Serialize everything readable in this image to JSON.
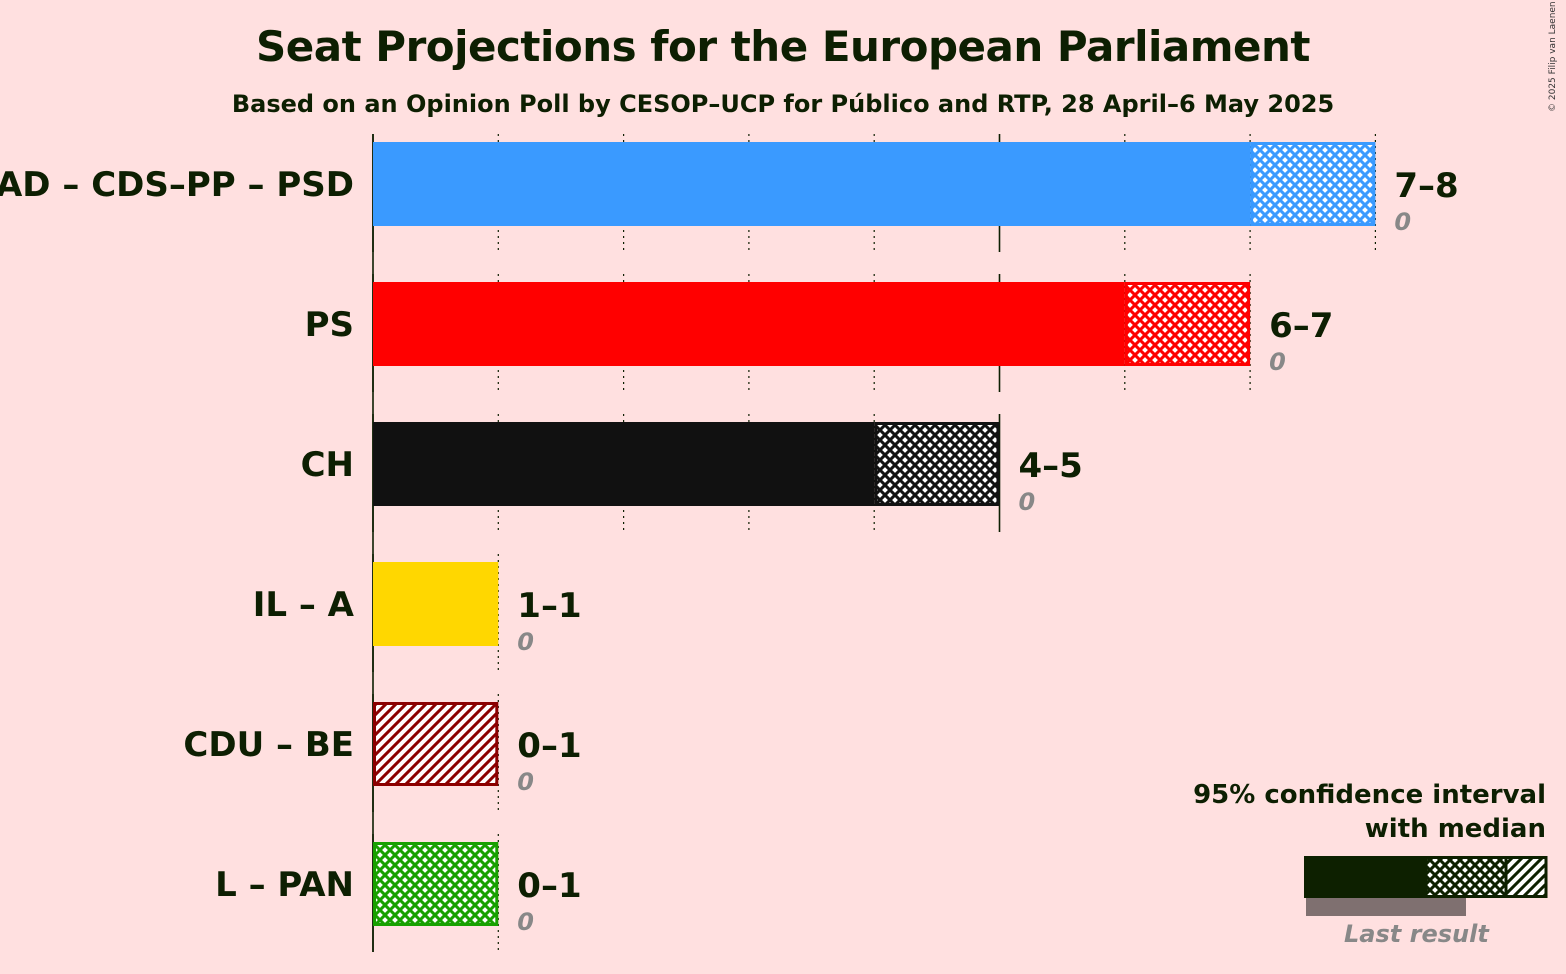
{
  "title": "Seat Projections for the European Parliament",
  "subtitle": "Based on an Opinion Poll by CESOP–UCP for Público and RTP, 28 April–6 May 2025",
  "copyright": "© 2025 Filip van Laenen",
  "legend": {
    "title_line1": "95% confidence interval",
    "title_line2": "with median",
    "last_result": "Last result"
  },
  "chart_data": {
    "type": "bar",
    "orientation": "horizontal",
    "xlim": [
      0,
      8
    ],
    "grid": true,
    "title": "Seat Projections for the European Parliament",
    "parties": [
      {
        "name": "AD – CDS–PP – PSD",
        "low": 7,
        "median": 7,
        "high": 8,
        "range_label": "7–8",
        "last": 0,
        "last_label": "0",
        "color": "#3a9aff",
        "pattern": "cross"
      },
      {
        "name": "PS",
        "low": 6,
        "median": 6,
        "high": 7,
        "range_label": "6–7",
        "last": 0,
        "last_label": "0",
        "color": "#ff0000",
        "pattern": "cross"
      },
      {
        "name": "CH",
        "low": 4,
        "median": 4,
        "high": 5,
        "range_label": "4–5",
        "last": 0,
        "last_label": "0",
        "color": "#111111",
        "pattern": "cross"
      },
      {
        "name": "IL – A",
        "low": 1,
        "median": 1,
        "high": 1,
        "range_label": "1–1",
        "last": 0,
        "last_label": "0",
        "color": "#ffd700",
        "pattern": "none"
      },
      {
        "name": "CDU – BE",
        "low": 0,
        "median": 0,
        "high": 1,
        "range_label": "0–1",
        "last": 0,
        "last_label": "0",
        "color": "#8b0000",
        "pattern": "hatch"
      },
      {
        "name": "L – PAN",
        "low": 0,
        "median": 0,
        "high": 1,
        "range_label": "0–1",
        "last": 0,
        "last_label": "0",
        "color": "#18a000",
        "pattern": "cross"
      }
    ]
  }
}
